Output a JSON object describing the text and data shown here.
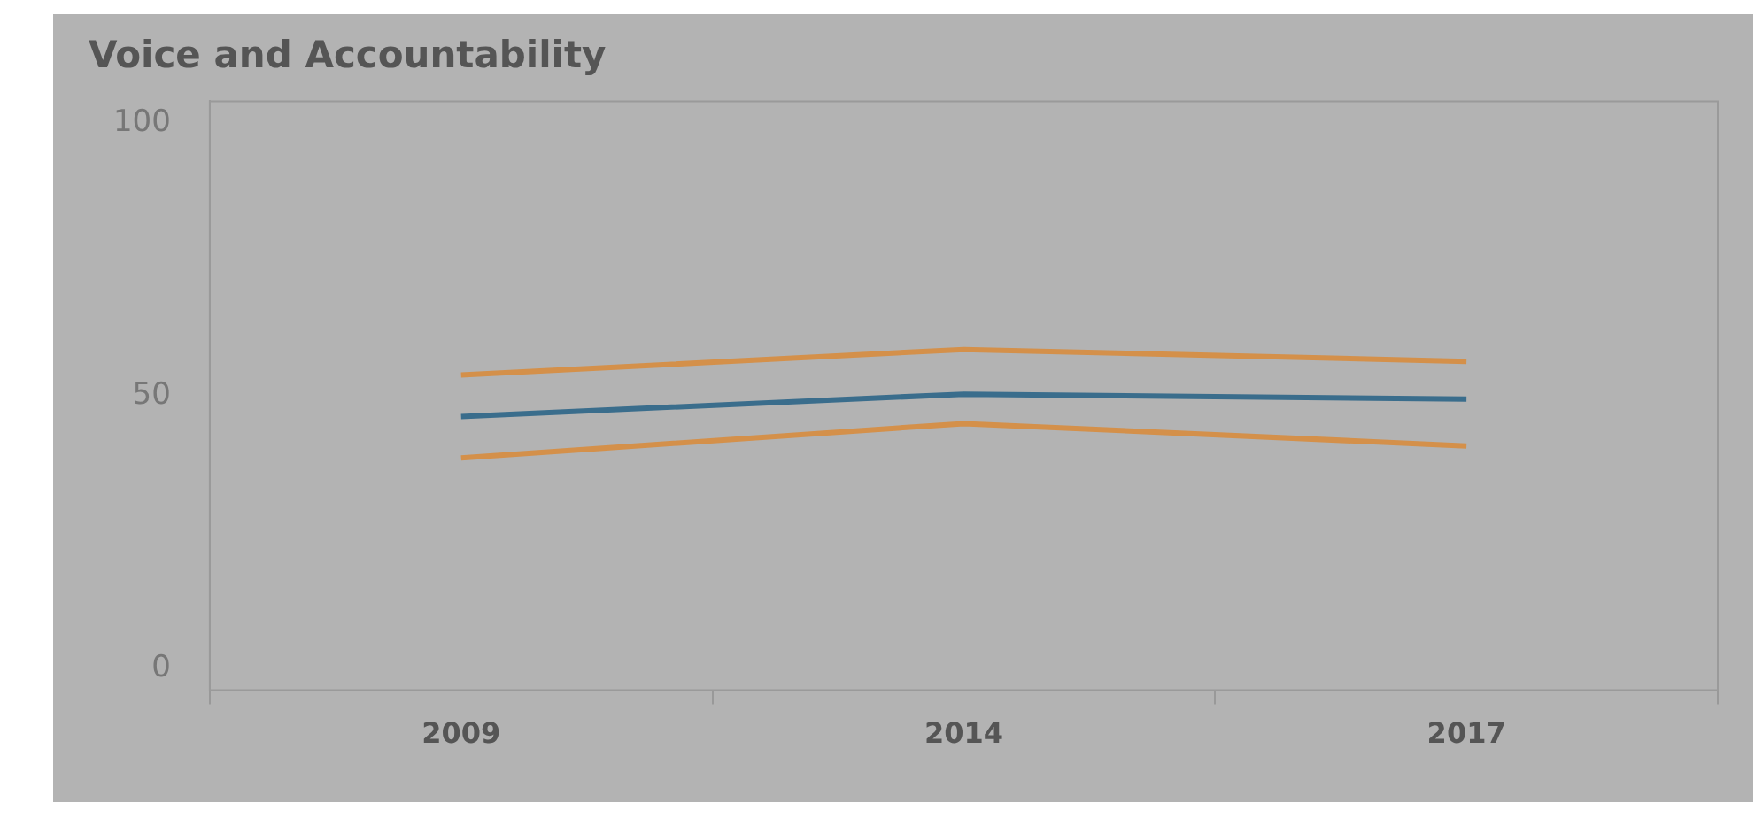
{
  "chart_data": {
    "type": "line",
    "title": "Voice and Accountability",
    "categories": [
      "2009",
      "2014",
      "2017"
    ],
    "series": [
      {
        "color": "#d4904a",
        "values": [
          53.8,
          58.5,
          56.3
        ]
      },
      {
        "color": "#3a6d8c",
        "values": [
          46.2,
          50.3,
          49.4
        ]
      },
      {
        "color": "#d4904a",
        "values": [
          38.6,
          44.9,
          40.8
        ]
      }
    ],
    "ylim": [
      -4,
      104
    ],
    "yticks": [
      0,
      50,
      100
    ],
    "marker": "none"
  }
}
